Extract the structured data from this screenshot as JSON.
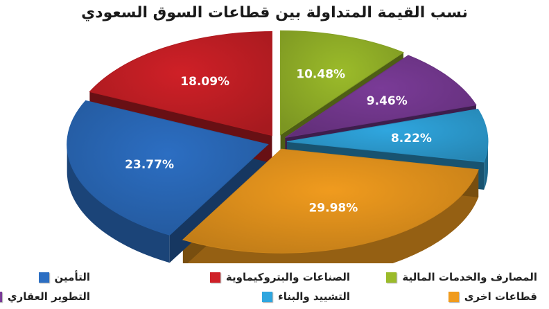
{
  "chart_data": {
    "type": "pie",
    "title": "نسب القيمة المتداولة بين قطاعات السوق السعودي",
    "slices": [
      {
        "label": "المصارف والخدمات المالية",
        "value": 10.48,
        "display": "10.48%",
        "color": "#9bbb2a"
      },
      {
        "label": "التطوير العقاري",
        "value": 9.46,
        "display": "9.46%",
        "color": "#7a3b97"
      },
      {
        "label": "التشييد والبناء",
        "value": 8.22,
        "display": "8.22%",
        "color": "#2fa6df"
      },
      {
        "label": "قطاعات اخرى",
        "value": 29.98,
        "display": "29.98%",
        "color": "#f09b1e"
      },
      {
        "label": "التأمين",
        "value": 23.77,
        "display": "23.77%",
        "color": "#2c6ec2"
      },
      {
        "label": "الصناعات والبتروكيماوية",
        "value": 18.09,
        "display": "18.09%",
        "color": "#cf2027"
      }
    ],
    "legend_placement": "bottom",
    "legend": [
      {
        "label": "التأمين",
        "color": "#2c6ec2"
      },
      {
        "label": "الصناعات والبتروكيماوية",
        "color": "#cf2027"
      },
      {
        "label": "المصارف والخدمات المالية",
        "color": "#9bbb2a"
      },
      {
        "label": "التطوير العقاري",
        "color": "#7a3b97"
      },
      {
        "label": "التشييد والبناء",
        "color": "#2fa6df"
      },
      {
        "label": "قطاعات اخرى",
        "color": "#f09b1e"
      }
    ]
  }
}
